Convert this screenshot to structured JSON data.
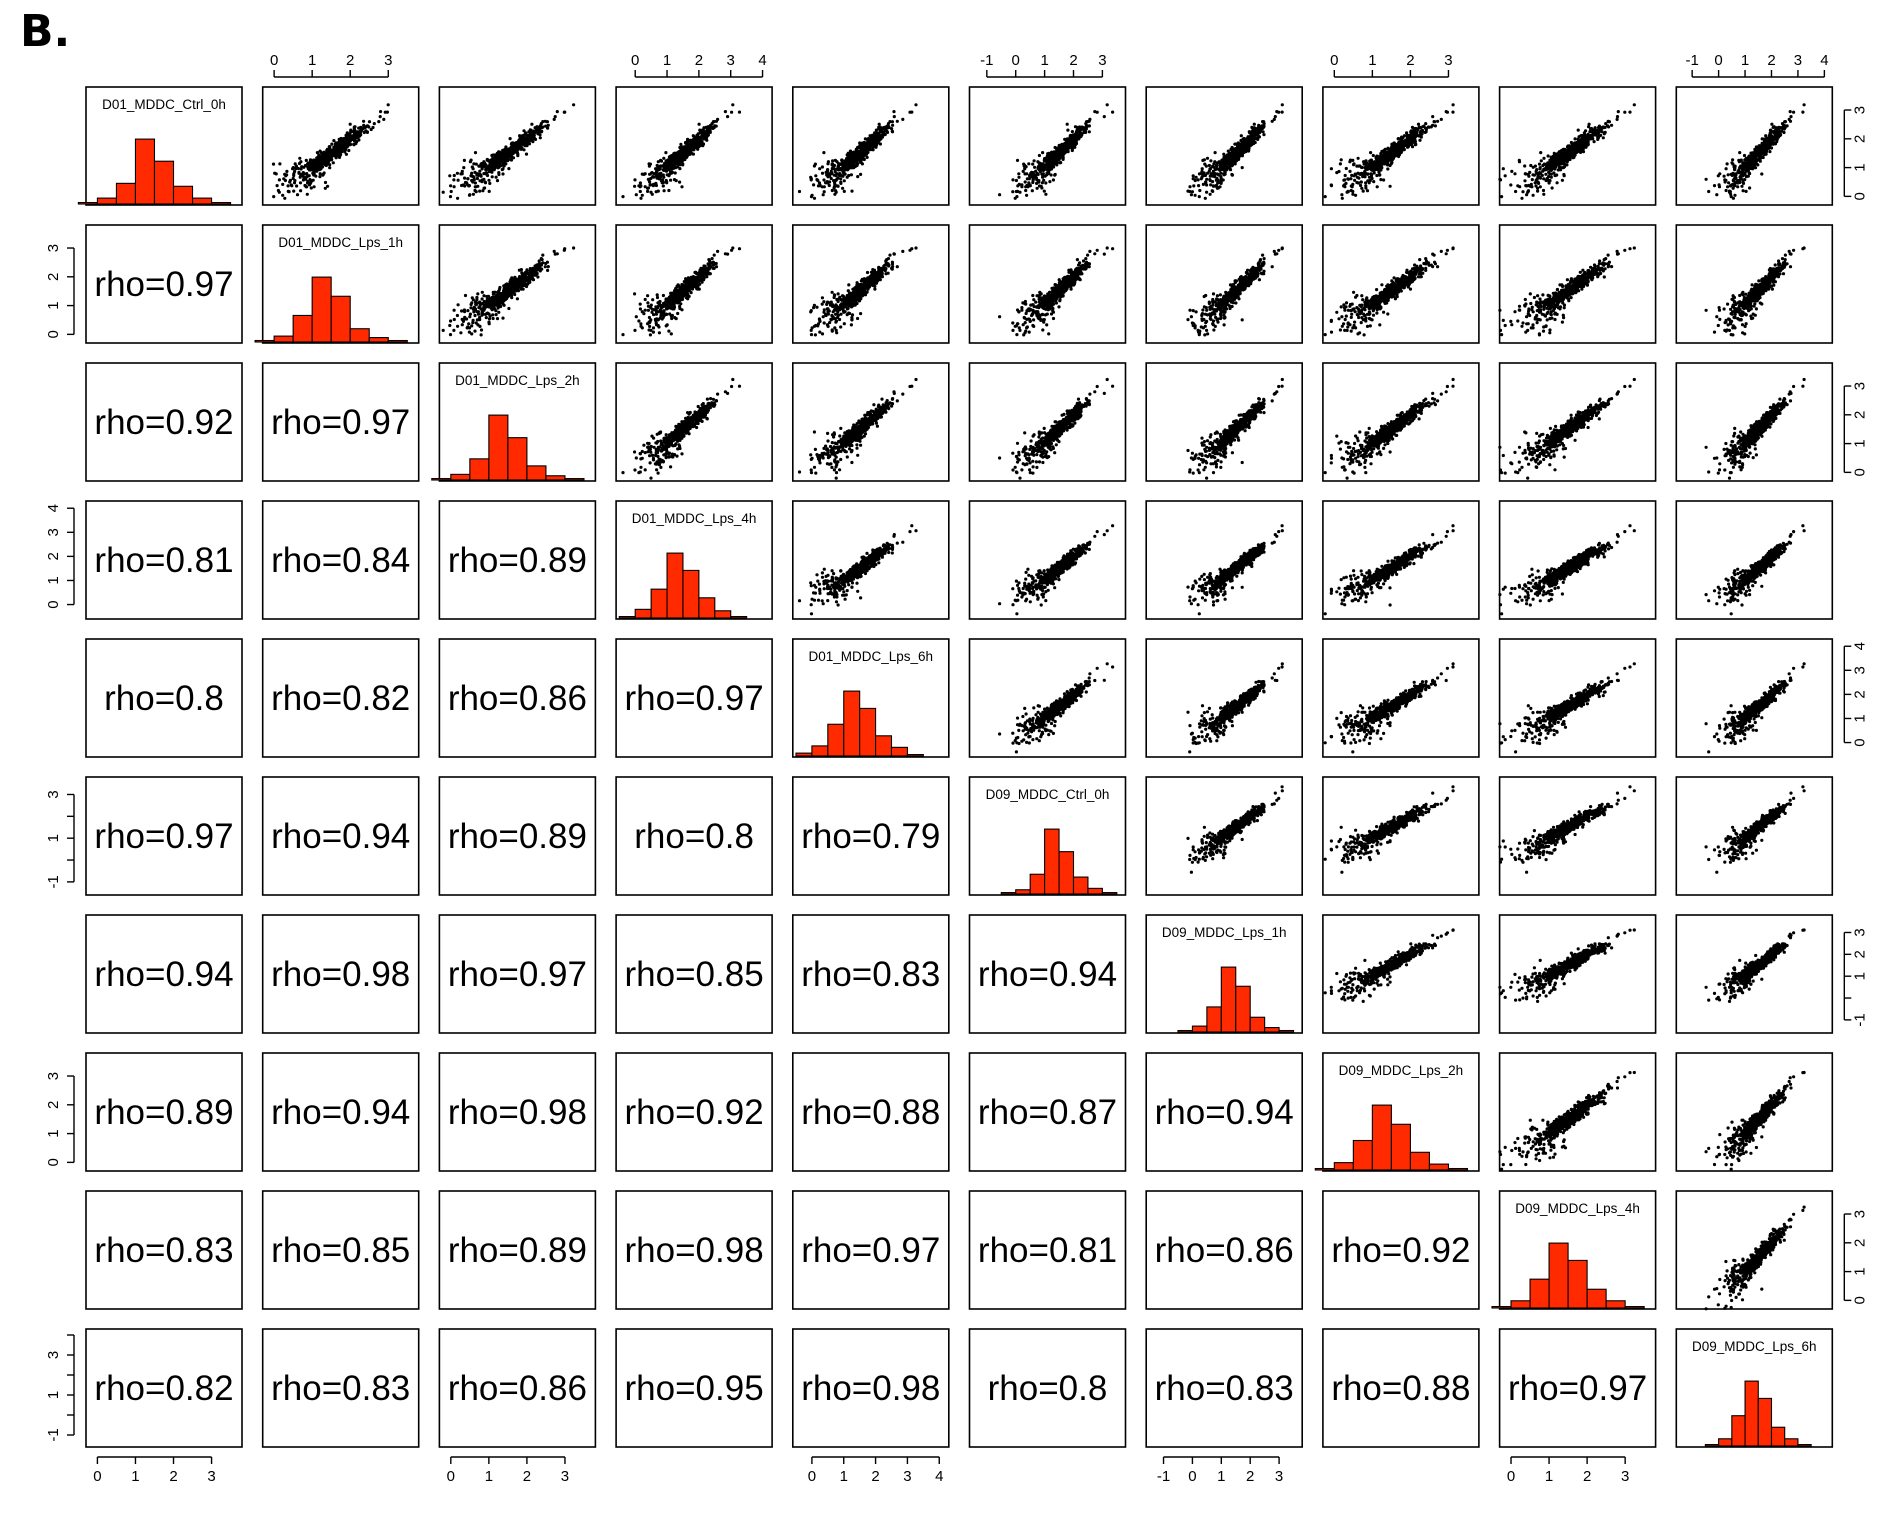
{
  "panel_label": "B.",
  "chart_data": {
    "type": "scatter-matrix",
    "variables": [
      "D01_MDDC_Ctrl_0h",
      "D01_MDDC_Lps_1h",
      "D01_MDDC_Lps_2h",
      "D01_MDDC_Lps_4h",
      "D01_MDDC_Lps_6h",
      "D09_MDDC_Ctrl_0h",
      "D09_MDDC_Lps_1h",
      "D09_MDDC_Lps_2h",
      "D09_MDDC_Lps_4h",
      "D09_MDDC_Lps_6h"
    ],
    "rho_prefix": "rho=",
    "rho_lower": [
      [],
      [
        "0.97"
      ],
      [
        "0.92",
        "0.97"
      ],
      [
        "0.81",
        "0.84",
        "0.89"
      ],
      [
        "0.8",
        "0.82",
        "0.86",
        "0.97"
      ],
      [
        "0.97",
        "0.94",
        "0.89",
        "0.8",
        "0.79"
      ],
      [
        "0.94",
        "0.98",
        "0.97",
        "0.85",
        "0.83",
        "0.94"
      ],
      [
        "0.89",
        "0.94",
        "0.98",
        "0.92",
        "0.88",
        "0.87",
        "0.94"
      ],
      [
        "0.83",
        "0.85",
        "0.89",
        "0.98",
        "0.97",
        "0.81",
        "0.86",
        "0.92"
      ],
      [
        "0.82",
        "0.83",
        "0.86",
        "0.95",
        "0.98",
        "0.8",
        "0.83",
        "0.88",
        "0.97"
      ]
    ],
    "axis_ranges": [
      [
        -0.3,
        3.8
      ],
      [
        -0.3,
        3.8
      ],
      [
        -0.3,
        3.8
      ],
      [
        -0.6,
        4.3
      ],
      [
        -0.6,
        4.3
      ],
      [
        -1.6,
        3.8
      ],
      [
        -1.6,
        3.8
      ],
      [
        -0.3,
        3.8
      ],
      [
        -0.3,
        3.8
      ],
      [
        -1.6,
        4.3
      ]
    ],
    "axis_ticks": [
      [
        0,
        1,
        2,
        3
      ],
      [
        0,
        1,
        2,
        3
      ],
      [
        0,
        1,
        2,
        3
      ],
      [
        0,
        1,
        2,
        3,
        4
      ],
      [
        0,
        1,
        2,
        3,
        4
      ],
      [
        -1,
        0,
        1,
        2,
        3
      ],
      [
        -1,
        0,
        1,
        2,
        3
      ],
      [
        0,
        1,
        2,
        3
      ],
      [
        0,
        1,
        2,
        3
      ],
      [
        -1,
        0,
        1,
        2,
        3,
        4
      ]
    ],
    "tick_labels": [
      [
        "0",
        "1",
        "2",
        "3"
      ],
      [
        "0",
        "1",
        "2",
        "3"
      ],
      [
        "0",
        "1",
        "2",
        "3"
      ],
      [
        "0",
        "1",
        "2",
        "3",
        "4"
      ],
      [
        "0",
        "1",
        "2",
        "3",
        "4"
      ],
      [
        "-1",
        "0",
        "1",
        "2",
        "3"
      ],
      [
        "-1",
        "0",
        "1",
        "2",
        "3"
      ],
      [
        "0",
        "1",
        "2",
        "3"
      ],
      [
        "0",
        "1",
        "2",
        "3"
      ],
      [
        "-1",
        "0",
        "1",
        "2",
        "3",
        "4"
      ]
    ],
    "labeled_tick_indices": [
      [
        0,
        2
      ],
      [
        1,
        3
      ],
      [
        0,
        2
      ],
      [
        0,
        1,
        2,
        3,
        4
      ],
      [
        1,
        3
      ],
      [
        0,
        2,
        4
      ],
      [
        1,
        3
      ],
      [
        0,
        2
      ],
      [
        1,
        3
      ],
      [
        0,
        1,
        2,
        3,
        4,
        5
      ]
    ],
    "y_labeled_tick_indices": [
      [
        0,
        1,
        2,
        3
      ],
      [
        0,
        1,
        2,
        3
      ],
      [
        0,
        1,
        2,
        3
      ],
      [
        0,
        1,
        2,
        3,
        4
      ],
      [
        0,
        1,
        2,
        3,
        4
      ],
      [
        0,
        2,
        4
      ],
      [
        0,
        2,
        3,
        4
      ],
      [
        0,
        1,
        2,
        3
      ],
      [
        0,
        1,
        2,
        3
      ],
      [
        0,
        2,
        4
      ]
    ],
    "histogram_edges": [
      -0.5,
      0,
      0.5,
      1,
      1.5,
      2,
      2.5,
      3,
      3.5,
      4
    ],
    "histogram_counts": [
      [
        1,
        4,
        14,
        44,
        29,
        12,
        4,
        1,
        0
      ],
      [
        1,
        4,
        18,
        44,
        31,
        9,
        3,
        1,
        0
      ],
      [
        1,
        4,
        15,
        46,
        30,
        10,
        3,
        1,
        0
      ],
      [
        1,
        6,
        20,
        45,
        33,
        14,
        5,
        1,
        0
      ],
      [
        2,
        7,
        22,
        45,
        33,
        14,
        6,
        1,
        0
      ],
      [
        1,
        3,
        14,
        46,
        30,
        12,
        4,
        1,
        0
      ],
      [
        1,
        4,
        17,
        44,
        31,
        10,
        3,
        1,
        0
      ],
      [
        1,
        5,
        20,
        44,
        31,
        12,
        4,
        1,
        0
      ],
      [
        1,
        5,
        20,
        45,
        33,
        13,
        5,
        1,
        0
      ],
      [
        1,
        5,
        21,
        45,
        33,
        13,
        5,
        1,
        0
      ]
    ],
    "points_per_panel": 600,
    "grid": false,
    "legend": "none"
  }
}
